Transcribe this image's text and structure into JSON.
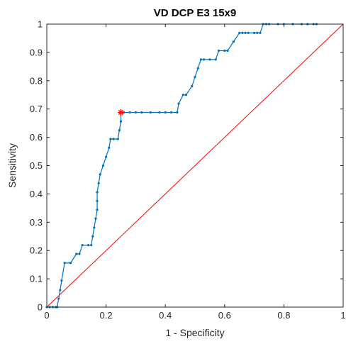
{
  "chart_data": {
    "type": "line",
    "title": "VD DCP E3 15x9",
    "xlabel": "1 - Specificity",
    "ylabel": "Sensitivity",
    "xlim": [
      0,
      1
    ],
    "ylim": [
      0,
      1
    ],
    "grid": false,
    "x_ticks": [
      "0",
      "0.2",
      "0.4",
      "0.6",
      "0.8",
      "1"
    ],
    "y_ticks": [
      "0",
      "0.1",
      "0.2",
      "0.3",
      "0.4",
      "0.5",
      "0.6",
      "0.7",
      "0.8",
      "0.9",
      "1"
    ],
    "colors": {
      "roc": "#0072BD",
      "reference": "#ff0000",
      "optimal_point": "#ff0000"
    },
    "series": [
      {
        "x": [
          0,
          0.01,
          0.02,
          0.03,
          0.035,
          0.04,
          0.045,
          0.05,
          0.06,
          0.08,
          0.1,
          0.11,
          0.12,
          0.14,
          0.15,
          0.155,
          0.16,
          0.165,
          0.17,
          0.17,
          0.17,
          0.175,
          0.18,
          0.19,
          0.2,
          0.21,
          0.215,
          0.225,
          0.24,
          0.245,
          0.25,
          0.25,
          0.26,
          0.28,
          0.3,
          0.32,
          0.35,
          0.38,
          0.4,
          0.42,
          0.44,
          0.445,
          0.46,
          0.47,
          0.49,
          0.5,
          0.51,
          0.52,
          0.53,
          0.55,
          0.57,
          0.58,
          0.6,
          0.61,
          0.63,
          0.65,
          0.66,
          0.67,
          0.68,
          0.7,
          0.71,
          0.72,
          0.73,
          0.74,
          0.75,
          0.78,
          0.8,
          0.83,
          0.86,
          0.88,
          0.9,
          0.91
        ],
        "y": [
          0,
          0,
          0,
          0,
          0,
          0.03,
          0.06,
          0.094,
          0.156,
          0.156,
          0.188,
          0.188,
          0.219,
          0.219,
          0.219,
          0.25,
          0.281,
          0.313,
          0.344,
          0.375,
          0.406,
          0.438,
          0.469,
          0.5,
          0.531,
          0.563,
          0.594,
          0.594,
          0.594,
          0.625,
          0.656,
          0.688,
          0.688,
          0.688,
          0.688,
          0.688,
          0.688,
          0.688,
          0.688,
          0.688,
          0.688,
          0.719,
          0.75,
          0.75,
          0.781,
          0.813,
          0.844,
          0.875,
          0.875,
          0.875,
          0.875,
          0.906,
          0.906,
          0.906,
          0.938,
          0.969,
          0.969,
          0.969,
          0.969,
          0.969,
          0.969,
          0.969,
          1,
          1,
          1,
          1,
          1,
          1,
          1,
          1,
          1,
          1
        ]
      }
    ],
    "reference_line": {
      "x": [
        0,
        1
      ],
      "y": [
        0,
        1
      ]
    },
    "optimal_point": {
      "x": 0.25,
      "y": 0.688
    }
  }
}
